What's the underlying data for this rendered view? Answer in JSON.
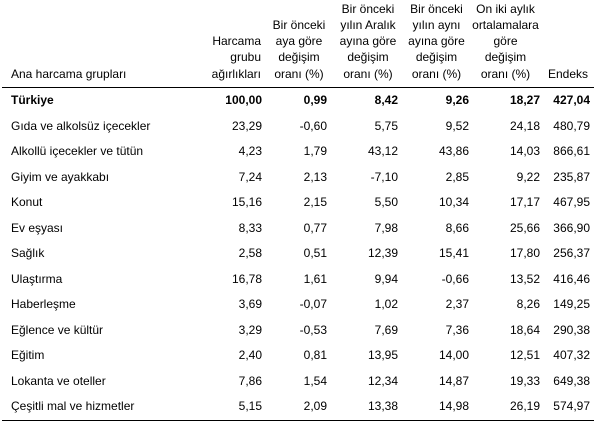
{
  "chart_data": {
    "type": "table",
    "columns": [
      "Ana harcama grupları",
      "Harcama\ngrubu\nağırlıkları",
      "Bir önceki\naya göre\ndeğişim\noranı (%)",
      "Bir önceki\nyılın Aralık\nayına göre\ndeğişim\noranı (%)",
      "Bir önceki\nyılın aynı\nayına göre\ndeğişim\noranı (%)",
      "On iki aylık\nortalamalara\ngöre\ndeğişim\noranı (%)",
      "Endeks"
    ],
    "rows": [
      {
        "label": "Türkiye",
        "values": [
          "100,00",
          "0,99",
          "8,42",
          "9,26",
          "18,27",
          "427,04"
        ]
      },
      {
        "label": "Gıda ve alkolsüz içecekler",
        "values": [
          "23,29",
          "-0,60",
          "5,75",
          "9,52",
          "24,18",
          "480,79"
        ]
      },
      {
        "label": "Alkollü içecekler ve tütün",
        "values": [
          "4,23",
          "1,79",
          "43,12",
          "43,86",
          "14,03",
          "866,61"
        ]
      },
      {
        "label": "Giyim ve ayakkabı",
        "values": [
          "7,24",
          "2,13",
          "-7,10",
          "2,85",
          "9,22",
          "235,87"
        ]
      },
      {
        "label": "Konut",
        "values": [
          "15,16",
          "2,15",
          "5,50",
          "10,34",
          "17,17",
          "467,95"
        ]
      },
      {
        "label": "Ev eşyası",
        "values": [
          "8,33",
          "0,77",
          "7,98",
          "8,66",
          "25,66",
          "366,90"
        ]
      },
      {
        "label": "Sağlık",
        "values": [
          "2,58",
          "0,51",
          "12,39",
          "15,41",
          "17,80",
          "256,37"
        ]
      },
      {
        "label": "Ulaştırma",
        "values": [
          "16,78",
          "1,61",
          "9,94",
          "-0,66",
          "13,52",
          "416,46"
        ]
      },
      {
        "label": "Haberleşme",
        "values": [
          "3,69",
          "-0,07",
          "1,02",
          "2,37",
          "8,26",
          "149,25"
        ]
      },
      {
        "label": "Eğlence ve kültür",
        "values": [
          "3,29",
          "-0,53",
          "7,69",
          "7,36",
          "18,64",
          "290,38"
        ]
      },
      {
        "label": "Eğitim",
        "values": [
          "2,40",
          "0,81",
          "13,95",
          "14,00",
          "12,51",
          "407,32"
        ]
      },
      {
        "label": "Lokanta ve oteller",
        "values": [
          "7,86",
          "1,54",
          "12,34",
          "14,87",
          "19,33",
          "649,38"
        ]
      },
      {
        "label": "Çeşitli mal ve hizmetler",
        "values": [
          "5,15",
          "2,09",
          "13,38",
          "14,98",
          "26,19",
          "574,97"
        ]
      }
    ]
  }
}
